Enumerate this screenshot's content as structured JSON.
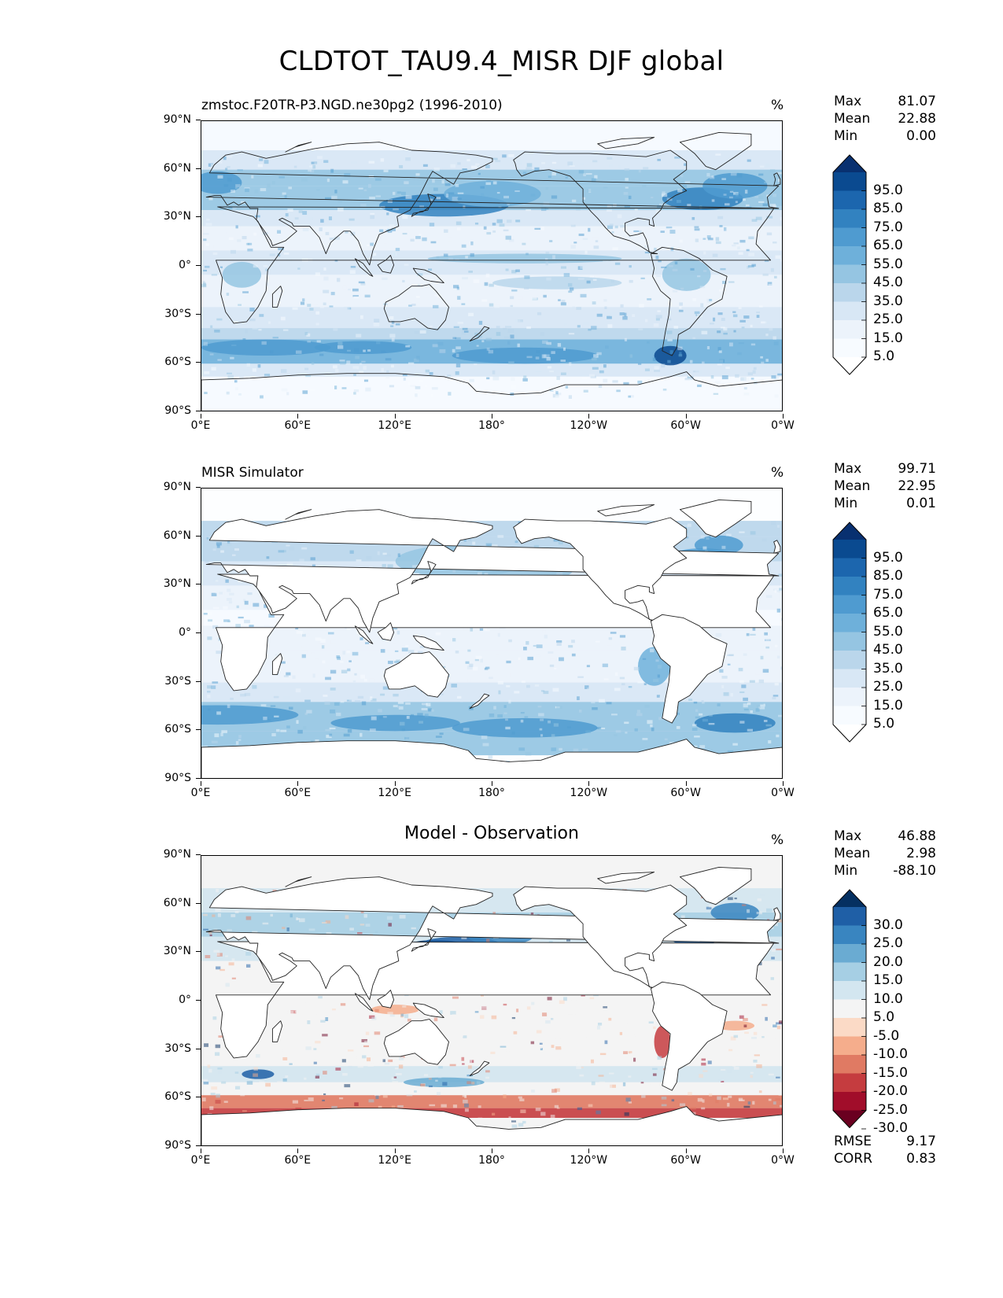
{
  "figure_title": "CLDTOT_TAU9.4_MISR DJF global",
  "x_tick_labels": [
    "0°E",
    "60°E",
    "120°E",
    "180°",
    "120°W",
    "60°W",
    "0°W"
  ],
  "y_tick_labels": [
    "90°N",
    "60°N",
    "30°N",
    "0°",
    "30°S",
    "60°S",
    "90°S"
  ],
  "panels": [
    {
      "title": "zmstoc.F20TR-P3.NGD.ne30pg2 (1996-2010)",
      "units": "%",
      "stats": [
        {
          "label": "Max",
          "value": "81.07"
        },
        {
          "label": "Mean",
          "value": "22.88"
        },
        {
          "label": "Min",
          "value": "0.00"
        }
      ],
      "colorbar_labels": [
        "95.0",
        "85.0",
        "75.0",
        "65.0",
        "55.0",
        "45.0",
        "35.0",
        "25.0",
        "15.0",
        "5.0"
      ],
      "colors": [
        "#083070",
        "#0a4a90",
        "#1c66ae",
        "#3282c0",
        "#4f9bd0",
        "#6eb0da",
        "#95c5e2",
        "#bad6eb",
        "#d8e7f5",
        "#ecf3fb",
        "#f7fbff",
        "#ffffff"
      ]
    },
    {
      "title": "MISR Simulator",
      "units": "%",
      "stats": [
        {
          "label": "Max",
          "value": "99.71"
        },
        {
          "label": "Mean",
          "value": "22.95"
        },
        {
          "label": "Min",
          "value": "0.01"
        }
      ],
      "colorbar_labels": [
        "95.0",
        "85.0",
        "75.0",
        "65.0",
        "55.0",
        "45.0",
        "35.0",
        "25.0",
        "15.0",
        "5.0"
      ],
      "colors": [
        "#083070",
        "#0a4a90",
        "#1c66ae",
        "#3282c0",
        "#4f9bd0",
        "#6eb0da",
        "#95c5e2",
        "#bad6eb",
        "#d8e7f5",
        "#ecf3fb",
        "#f7fbff",
        "#ffffff"
      ]
    },
    {
      "title": "Model - Observation",
      "units": "%",
      "stats": [
        {
          "label": "Max",
          "value": "46.88"
        },
        {
          "label": "Mean",
          "value": "2.98"
        },
        {
          "label": "Min",
          "value": "-88.10"
        }
      ],
      "extra_stats": [
        {
          "label": "RMSE",
          "value": "9.17"
        },
        {
          "label": "CORR",
          "value": "0.83"
        }
      ],
      "colorbar_labels": [
        "30.0",
        "25.0",
        "20.0",
        "15.0",
        "10.0",
        "5.0",
        "-5.0",
        "-10.0",
        "-15.0",
        "-20.0",
        "-25.0",
        "-30.0"
      ],
      "colors": [
        "#053061",
        "#1f5fa6",
        "#3985c0",
        "#6aabd2",
        "#a6cfe4",
        "#d3e6f0",
        "#f4f4f4",
        "#fbdac6",
        "#f5ad8c",
        "#e07a63",
        "#c53c3f",
        "#a10d2a",
        "#6a0020"
      ]
    }
  ]
}
